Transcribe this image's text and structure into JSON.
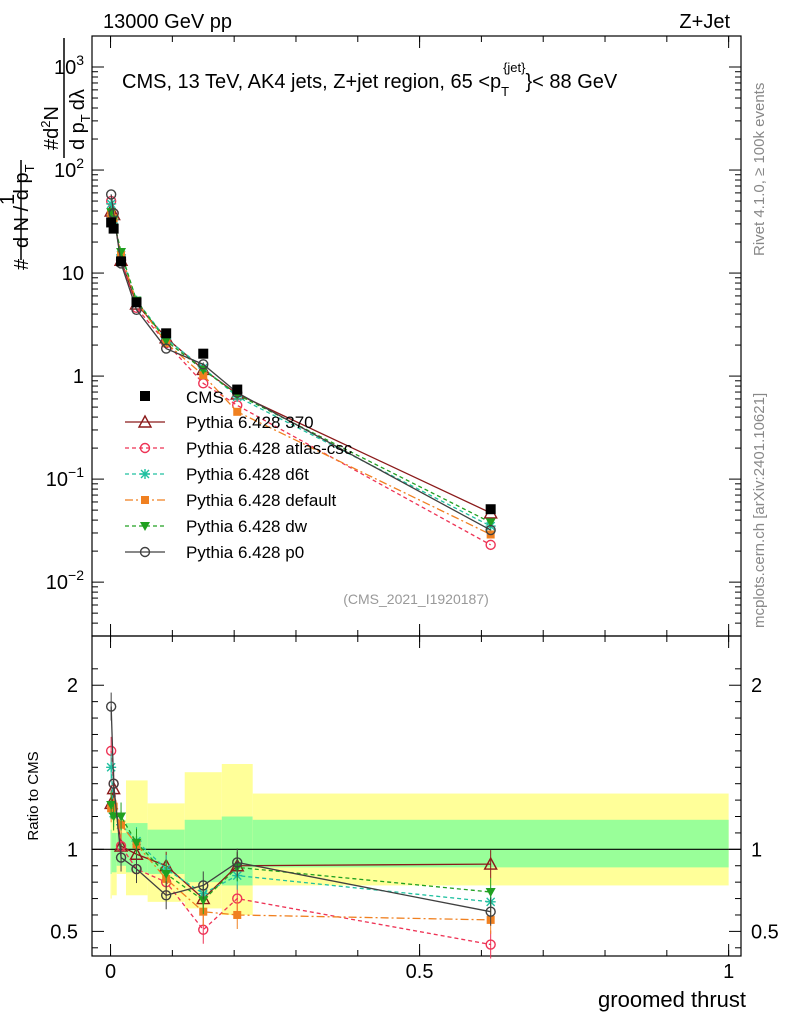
{
  "header": {
    "left": "13000 GeV pp",
    "right": "Z+Jet"
  },
  "side_labels": {
    "rivet": "Rivet 4.1.0, ≥ 100k events",
    "mcplots": "mcplots.cern.ch [arXiv:2401.10621]"
  },
  "y_label": {
    "num1": "#",
    "den1": "d N / d p",
    "den1_sub": "T",
    "num2_pre": "#",
    "num2_main": "d",
    "num2_sup": "2",
    "num2_end": "N",
    "den2_main": "d p",
    "den2_sub": "T",
    "den2_end": "dλ",
    "one": "1"
  },
  "ratio_label": "Ratio to CMS",
  "x_label": "groomed thrust",
  "watermark": "(CMS_2021_I1920187)",
  "colors": {
    "data": "#000000",
    "p370": "#8b1a1a",
    "atlas": "#ee3355",
    "d6t": "#20c0a0",
    "default": "#f08020",
    "dw": "#20a020",
    "p0": "#404040",
    "band_yellow": "#ffff99",
    "band_green": "#99ff99"
  },
  "chart_data": {
    "type": "scatter",
    "title": "CMS, 13 TeV, AK4 jets, Z+jet region, 65 <p_T^{jet}< 88 GeV",
    "title_parts": {
      "main": "CMS, 13 TeV, AK4 jets, Z+jet region, 65 <p",
      "sub": "T",
      "sup": "{jet}",
      "end": "}< 88 GeV"
    },
    "xlabel": "groomed thrust",
    "ylabel": "1/N dN/dλ",
    "xlim": [
      -0.03,
      1.02
    ],
    "ylim": [
      0.003,
      2000
    ],
    "yscale": "log",
    "x_ticks": [
      {
        "v": 0,
        "label": "0"
      },
      {
        "v": 0.5,
        "label": "0.5"
      },
      {
        "v": 1,
        "label": "1"
      }
    ],
    "y_ticks": [
      {
        "v": 0.01,
        "base": "10",
        "exp": "−2"
      },
      {
        "v": 0.1,
        "base": "10",
        "exp": "−1"
      },
      {
        "v": 1,
        "base": "1",
        "exp": ""
      },
      {
        "v": 10,
        "base": "10",
        "exp": ""
      },
      {
        "v": 100,
        "base": "10",
        "exp": "2"
      },
      {
        "v": 1000,
        "base": "10",
        "exp": "3"
      }
    ],
    "x": [
      0.001,
      0.005,
      0.017,
      0.042,
      0.09,
      0.15,
      0.205,
      0.615
    ],
    "data": {
      "name": "CMS",
      "values": [
        31,
        27,
        13,
        5.2,
        2.6,
        1.65,
        0.74,
        0.051
      ],
      "bins": [
        [
          0,
          0.002
        ],
        [
          0.002,
          0.01
        ],
        [
          0.01,
          0.025
        ],
        [
          0.025,
          0.06
        ],
        [
          0.06,
          0.12
        ],
        [
          0.12,
          0.18
        ],
        [
          0.18,
          0.23
        ],
        [
          0.23,
          1.0
        ]
      ]
    },
    "series": [
      {
        "name": "Pythia 6.428 370",
        "key": "p370",
        "marker": "triangle-open",
        "dash": "",
        "values": [
          40,
          37,
          13.3,
          5.0,
          2.35,
          1.16,
          0.67,
          0.047
        ]
      },
      {
        "name": "Pythia 6.428 atlas-csc",
        "key": "atlas",
        "marker": "circle-open",
        "dash": "4,3",
        "values": [
          50,
          38,
          13.3,
          4.6,
          2.1,
          0.85,
          0.52,
          0.023
        ]
      },
      {
        "name": "Pythia 6.428 d6t",
        "key": "d6t",
        "marker": "star",
        "dash": "4,3",
        "values": [
          47,
          33,
          15,
          5.4,
          2.3,
          1.2,
          0.63,
          0.035
        ]
      },
      {
        "name": "Pythia 6.428 default",
        "key": "default",
        "marker": "square-filled",
        "dash": "8,3,2,3",
        "values": [
          38,
          34,
          15,
          5.3,
          2.1,
          1.02,
          0.45,
          0.029
        ]
      },
      {
        "name": "Pythia 6.428 dw",
        "key": "dw",
        "marker": "triangle-down-filled",
        "dash": "4,3",
        "values": [
          39,
          33,
          16,
          5.4,
          2.2,
          1.15,
          0.66,
          0.038
        ]
      },
      {
        "name": "Pythia 6.428 p0",
        "key": "p0",
        "marker": "circle-open",
        "dash": "",
        "values": [
          58,
          38,
          12.4,
          4.4,
          1.85,
          1.3,
          0.69,
          0.032
        ]
      }
    ],
    "ratio": {
      "ylabel": "Ratio to CMS",
      "ylim": [
        0.35,
        2.3
      ],
      "y_ticks": [
        {
          "v": 0.5,
          "label": "0.5"
        },
        {
          "v": 1,
          "label": "1"
        },
        {
          "v": 2,
          "label": "2"
        }
      ],
      "band_yellow": [
        [
          0.7,
          1.3
        ],
        [
          0.72,
          1.3
        ],
        [
          0.85,
          1.18
        ],
        [
          0.72,
          1.42
        ],
        [
          0.68,
          1.28
        ],
        [
          0.64,
          1.47
        ],
        [
          0.6,
          1.52
        ],
        [
          0.78,
          1.34
        ]
      ],
      "band_green": [
        [
          0.85,
          1.12
        ],
        [
          0.86,
          1.1
        ],
        [
          0.9,
          1.1
        ],
        [
          0.86,
          1.16
        ],
        [
          0.85,
          1.12
        ],
        [
          0.8,
          1.18
        ],
        [
          0.78,
          1.2
        ],
        [
          0.89,
          1.18
        ]
      ],
      "series_values": {
        "p370": [
          1.28,
          1.37,
          1.02,
          0.97,
          0.9,
          0.7,
          0.9,
          0.91
        ],
        "atlas": [
          1.6,
          1.4,
          1.02,
          0.88,
          0.8,
          0.51,
          0.7,
          0.42
        ],
        "d6t": [
          1.5,
          1.22,
          1.15,
          1.05,
          0.88,
          0.73,
          0.84,
          0.68
        ],
        "default": [
          1.25,
          1.26,
          1.15,
          1.03,
          0.82,
          0.62,
          0.6,
          0.57
        ],
        "dw": [
          1.27,
          1.2,
          1.2,
          1.04,
          0.85,
          0.69,
          0.89,
          0.74
        ],
        "p0": [
          1.87,
          1.4,
          0.95,
          0.88,
          0.72,
          0.78,
          0.92,
          0.62
        ]
      }
    }
  }
}
